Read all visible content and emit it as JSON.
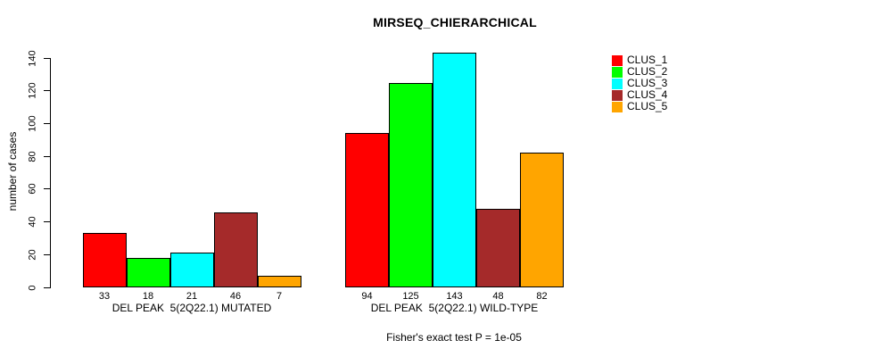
{
  "chart_data": {
    "type": "bar",
    "title": "MIRSEQ_CHIERARCHICAL",
    "ylabel": "number of cases",
    "footnote": "Fisher's exact test P = 1e-05",
    "categories": [
      "DEL PEAK  5(2Q22.1) MUTATED",
      "DEL PEAK  5(2Q22.1) WILD-TYPE"
    ],
    "series": [
      {
        "name": "CLUS_1",
        "color": "#FF0000",
        "values": [
          33,
          94
        ]
      },
      {
        "name": "CLUS_2",
        "color": "#00FF00",
        "values": [
          18,
          125
        ]
      },
      {
        "name": "CLUS_3",
        "color": "#00FFFF",
        "values": [
          21,
          143
        ]
      },
      {
        "name": "CLUS_4",
        "color": "#A52A2A",
        "values": [
          46,
          48
        ]
      },
      {
        "name": "CLUS_5",
        "color": "#FFA500",
        "values": [
          7,
          82
        ]
      }
    ],
    "yticks": [
      0,
      20,
      40,
      60,
      80,
      100,
      120,
      140
    ],
    "ylim": [
      0,
      140
    ],
    "grid": false,
    "legend_position": "right",
    "bar_border_color": "#000000",
    "background_color": "#FFFFFF"
  }
}
